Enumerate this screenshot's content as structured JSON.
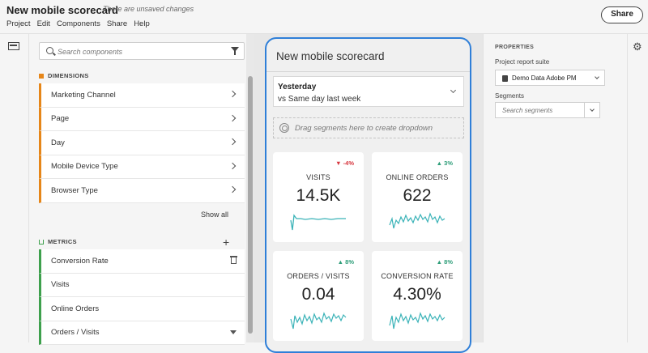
{
  "header": {
    "title": "New mobile scorecard",
    "unsaved": "There are unsaved changes",
    "menu": [
      "Project",
      "Edit",
      "Components",
      "Share",
      "Help"
    ],
    "share_label": "Share"
  },
  "components": {
    "search_placeholder": "Search components",
    "dimensions_label": "DIMENSIONS",
    "dimensions": [
      "Marketing Channel",
      "Page",
      "Day",
      "Mobile Device Type",
      "Browser Type"
    ],
    "show_all": "Show all",
    "metrics_label": "METRICS",
    "metrics": [
      "Conversion Rate",
      "Visits",
      "Online Orders",
      "Orders / Visits"
    ]
  },
  "scorecard": {
    "title": "New mobile scorecard",
    "date_main": "Yesterday",
    "date_sub": "vs Same day last week",
    "drop_text": "Drag segments here to create dropdown",
    "kpis": [
      {
        "label": "VISITS",
        "value": "14.5K",
        "delta": "▼ -4%",
        "trend": "down",
        "color": "#d7373f"
      },
      {
        "label": "ONLINE ORDERS",
        "value": "622",
        "delta": "▲ 3%",
        "trend": "up",
        "color": "#2d9d78"
      },
      {
        "label": "ORDERS / VISITS",
        "value": "0.04",
        "delta": "▲ 8%",
        "trend": "up",
        "color": "#2d9d78"
      },
      {
        "label": "CONVERSION RATE",
        "value": "4.30%",
        "delta": "▲ 8%",
        "trend": "up",
        "color": "#2d9d78"
      }
    ],
    "spark_color": "#3bb3b8"
  },
  "properties": {
    "heading": "PROPERTIES",
    "rs_label": "Project report suite",
    "rs_value": "Demo Data Adobe PM",
    "seg_label": "Segments",
    "seg_placeholder": "Search segments"
  },
  "icons": [
    "panel-icon",
    "search-icon",
    "filter-icon",
    "chevron-right-icon",
    "add-icon",
    "trash-icon",
    "funnel-icon",
    "segment-icon",
    "chevron-down-icon",
    "database-icon",
    "gear-icon"
  ]
}
